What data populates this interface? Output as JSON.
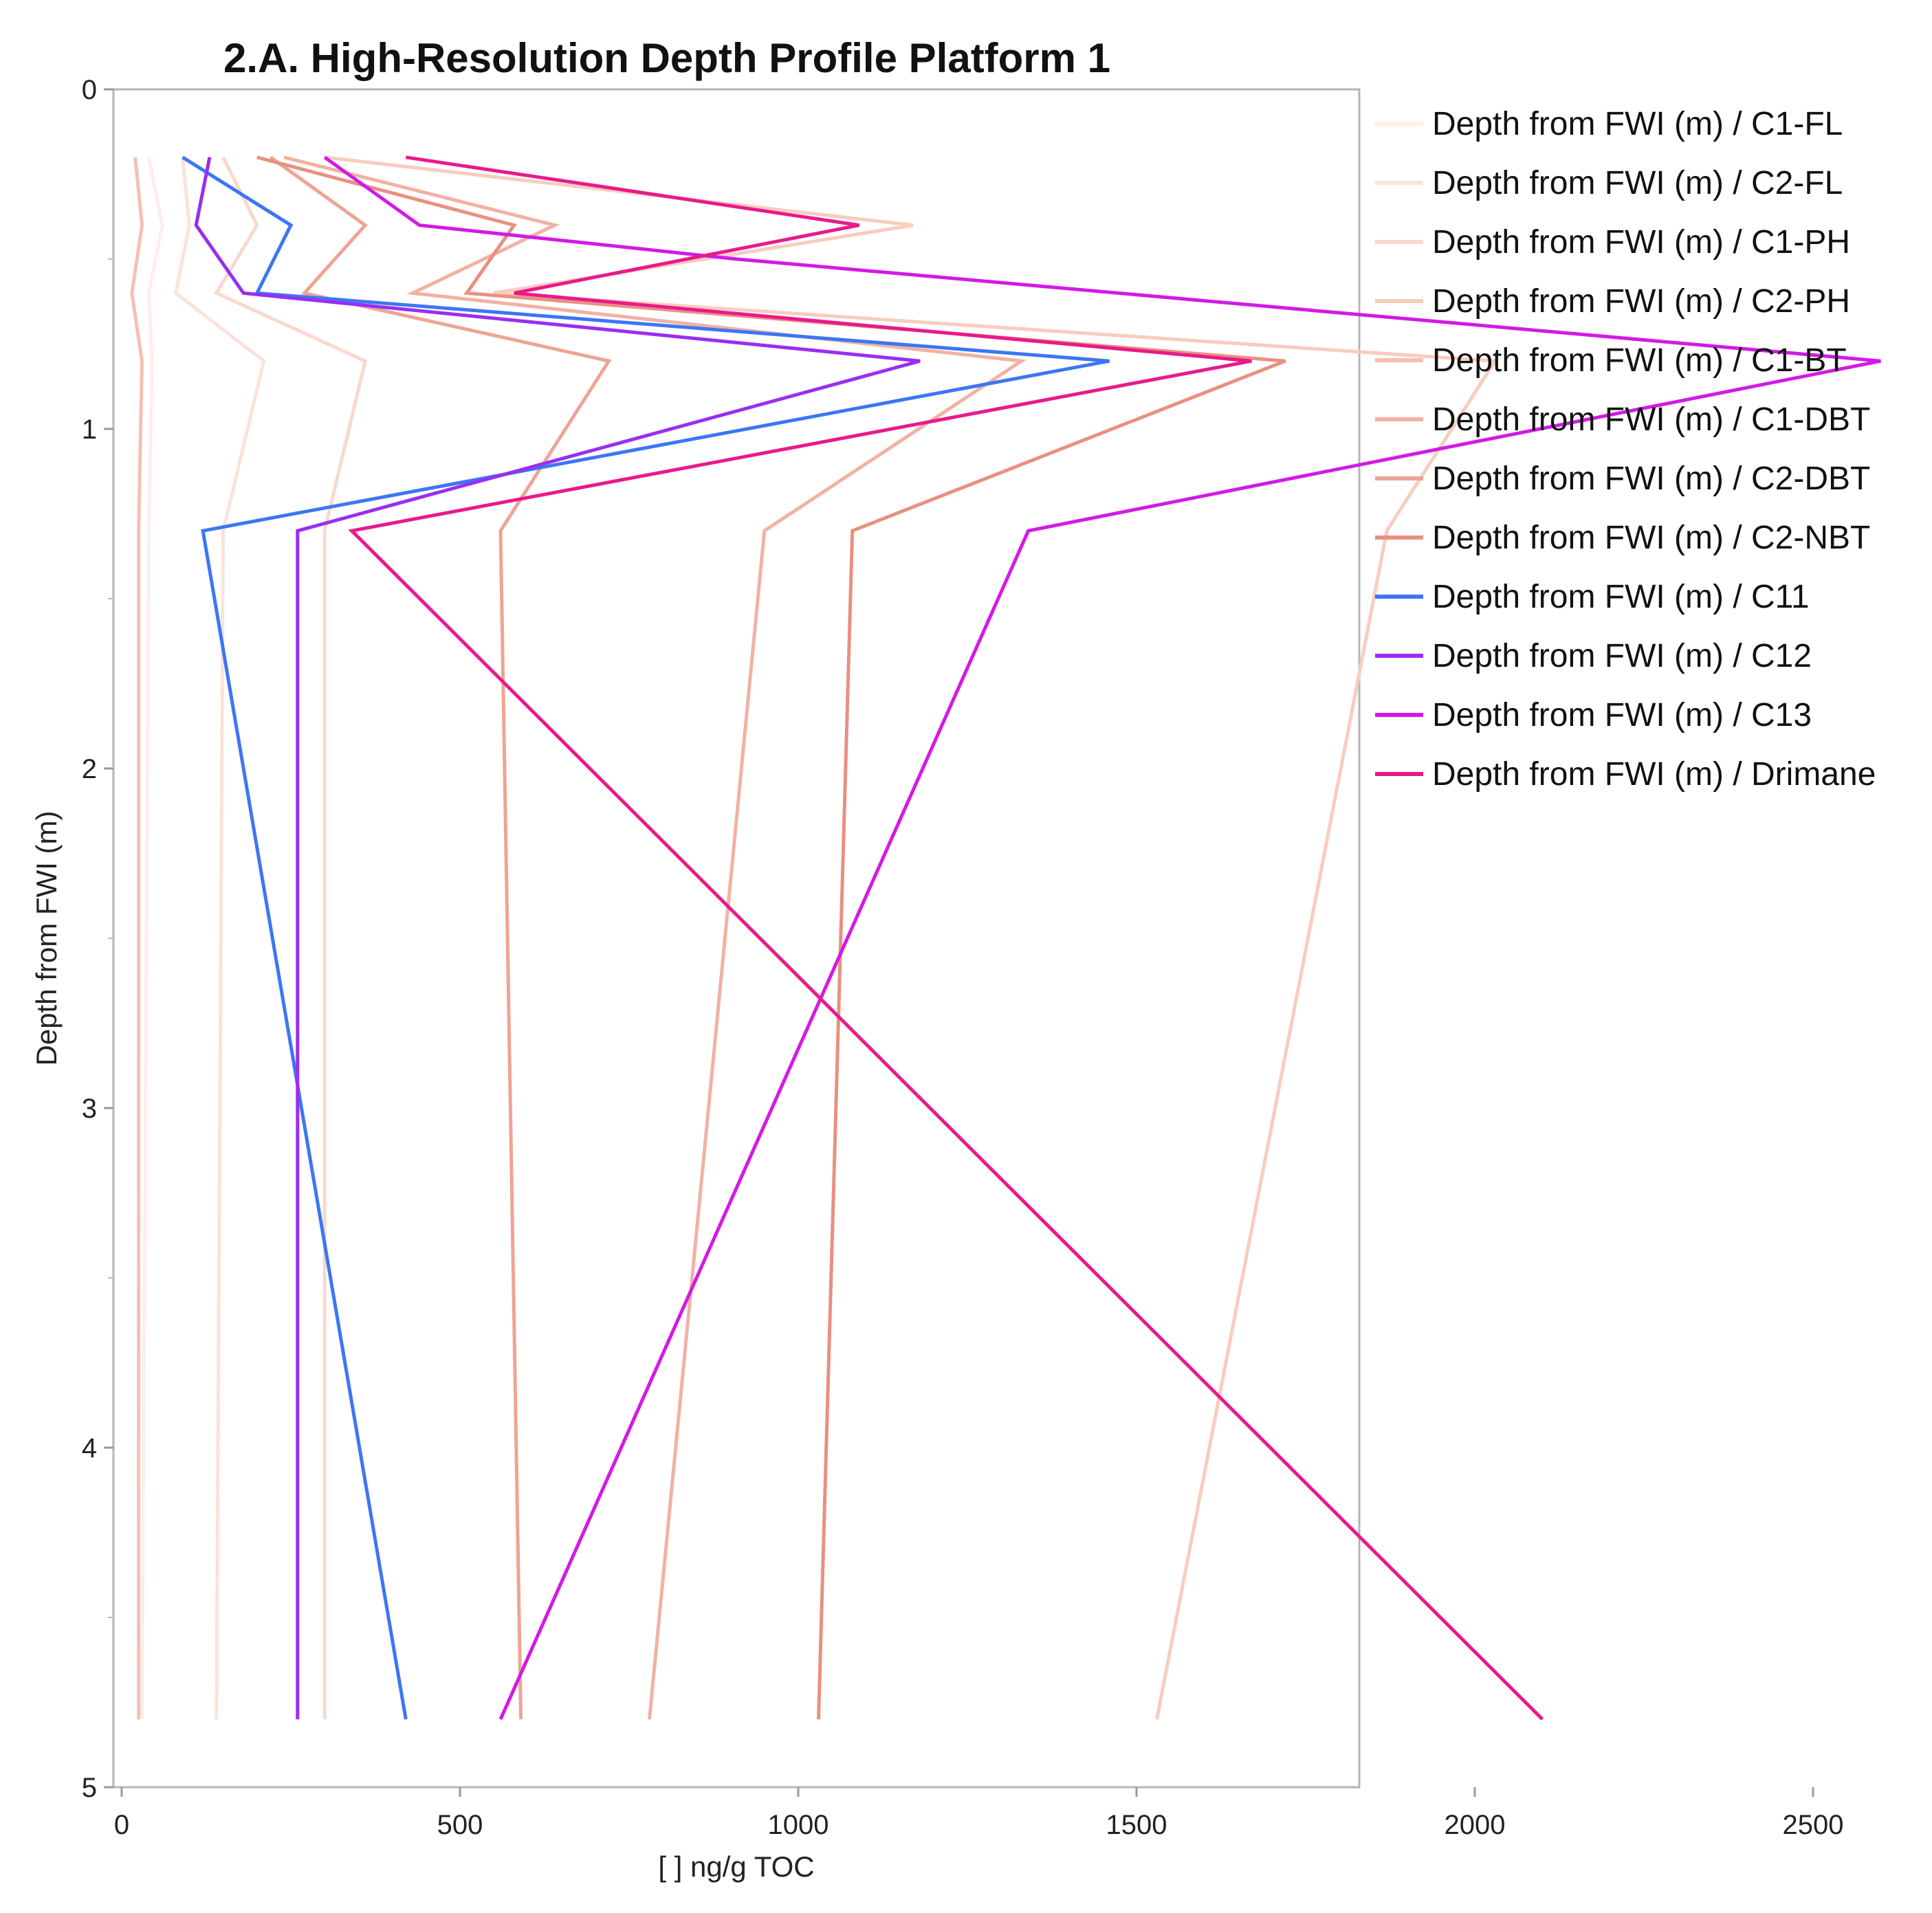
{
  "chart_data": {
    "type": "line",
    "title": "2.A. High-Resolution Depth Profile Platform 1",
    "xlabel": "[ ] ng/g TOC",
    "ylabel": "Depth from FWI (m)",
    "xlim": [
      0,
      2650
    ],
    "ylim": [
      0,
      5
    ],
    "y_inverted": true,
    "x_ticks": [
      0,
      500,
      1000,
      1500,
      2000,
      2500
    ],
    "y_ticks": [
      0,
      1,
      2,
      3,
      4,
      5
    ],
    "y_minor_ticks": [
      0.5,
      1.5,
      2.5,
      3.5,
      4.5
    ],
    "grid": false,
    "legend_position": "right",
    "series": [
      {
        "name": "Depth from FWI (m) / C1-FL",
        "color": "#fdeeea",
        "points": [
          [
            40,
            0.2
          ],
          [
            60,
            0.4
          ],
          [
            40,
            0.6
          ],
          [
            45,
            0.8
          ],
          [
            40,
            1.3
          ],
          [
            30,
            4.8
          ]
        ]
      },
      {
        "name": "Depth from FWI (m) / C2-FL",
        "color": "#fbe3da",
        "points": [
          [
            90,
            0.2
          ],
          [
            100,
            0.4
          ],
          [
            80,
            0.6
          ],
          [
            210,
            0.8
          ],
          [
            150,
            1.3
          ],
          [
            140,
            4.8
          ]
        ]
      },
      {
        "name": "Depth from FWI (m) / C1-PH",
        "color": "#fad8cd",
        "points": [
          [
            150,
            0.2
          ],
          [
            200,
            0.4
          ],
          [
            140,
            0.6
          ],
          [
            360,
            0.8
          ],
          [
            300,
            1.3
          ],
          [
            300,
            4.8
          ]
        ]
      },
      {
        "name": "Depth from FWI (m) / C2-PH",
        "color": "#f9ccbe",
        "points": [
          [
            300,
            0.2
          ],
          [
            1170,
            0.4
          ],
          [
            550,
            0.6
          ],
          [
            2030,
            0.8
          ],
          [
            1870,
            1.3
          ],
          [
            1530,
            4.8
          ]
        ]
      },
      {
        "name": "Depth from FWI (m) / C1-BT",
        "color": "#f6c0b2",
        "points": [
          [
            20,
            0.2
          ],
          [
            30,
            0.4
          ],
          [
            15,
            0.6
          ],
          [
            30,
            0.8
          ],
          [
            25,
            1.3
          ],
          [
            25,
            4.8
          ]
        ]
      },
      {
        "name": "Depth from FWI (m) / C1-DBT",
        "color": "#f2b1a3",
        "points": [
          [
            240,
            0.2
          ],
          [
            640,
            0.4
          ],
          [
            430,
            0.6
          ],
          [
            1330,
            0.8
          ],
          [
            950,
            1.3
          ],
          [
            780,
            4.8
          ]
        ]
      },
      {
        "name": "Depth from FWI (m) / C2-DBT",
        "color": "#eea494",
        "points": [
          [
            220,
            0.2
          ],
          [
            360,
            0.4
          ],
          [
            270,
            0.6
          ],
          [
            720,
            0.8
          ],
          [
            560,
            1.3
          ],
          [
            590,
            4.8
          ]
        ]
      },
      {
        "name": "Depth from FWI (m) / C2-NBT",
        "color": "#e99081",
        "points": [
          [
            200,
            0.2
          ],
          [
            580,
            0.4
          ],
          [
            510,
            0.6
          ],
          [
            1720,
            0.8
          ],
          [
            1080,
            1.3
          ],
          [
            1030,
            4.8
          ]
        ]
      },
      {
        "name": "Depth from FWI (m) / C11",
        "color": "#3c76f5",
        "points": [
          [
            90,
            0.2
          ],
          [
            250,
            0.4
          ],
          [
            200,
            0.6
          ],
          [
            1460,
            0.8
          ],
          [
            120,
            1.3
          ],
          [
            420,
            4.8
          ]
        ]
      },
      {
        "name": "Depth from FWI (m) / C12",
        "color": "#9a2ef0",
        "points": [
          [
            130,
            0.2
          ],
          [
            110,
            0.4
          ],
          [
            180,
            0.6
          ],
          [
            1180,
            0.8
          ],
          [
            260,
            1.3
          ],
          [
            260,
            4.8
          ]
        ]
      },
      {
        "name": "Depth from FWI (m) / C13",
        "color": "#d21ae6",
        "points": [
          [
            300,
            0.2
          ],
          [
            440,
            0.4
          ],
          [
            910,
            0.5
          ],
          [
            2600,
            0.8
          ],
          [
            1340,
            1.3
          ],
          [
            560,
            4.8
          ]
        ]
      },
      {
        "name": "Depth from FWI (m) / Drimane",
        "color": "#e81a8c",
        "points": [
          [
            420,
            0.2
          ],
          [
            1090,
            0.4
          ],
          [
            580,
            0.6
          ],
          [
            1670,
            0.8
          ],
          [
            340,
            1.3
          ],
          [
            2100,
            4.8
          ]
        ]
      }
    ]
  }
}
